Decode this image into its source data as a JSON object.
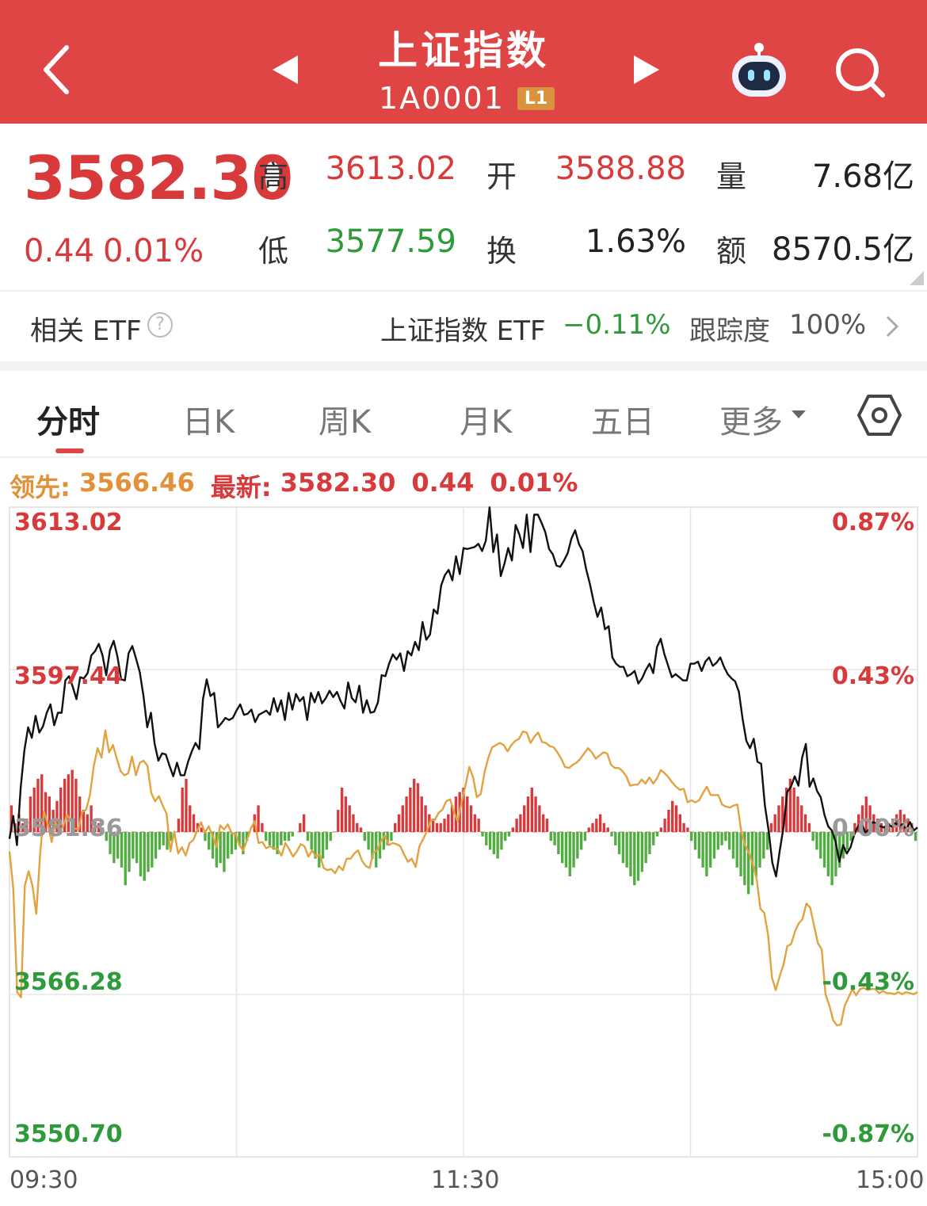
{
  "header": {
    "title": "上证指数",
    "code": "1A0001",
    "level_badge": "L1",
    "colors": {
      "background": "#e04545"
    },
    "icons": [
      "back-arrow-icon",
      "prev-triangle-icon",
      "next-triangle-icon",
      "robot-assistant-icon",
      "search-icon"
    ]
  },
  "quote": {
    "price": "3582.30",
    "change": "0.44",
    "change_pct": "0.01%",
    "stats": [
      {
        "label": "高",
        "value": "3613.02",
        "color": "red"
      },
      {
        "label": "开",
        "value": "3588.88",
        "color": "red"
      },
      {
        "label": "量",
        "value": "7.68亿",
        "color": "dark"
      },
      {
        "label": "低",
        "value": "3577.59",
        "color": "green"
      },
      {
        "label": "换",
        "value": "1.63%",
        "color": "dark"
      },
      {
        "label": "额",
        "value": "8570.5亿",
        "color": "dark"
      }
    ]
  },
  "etf": {
    "label": "相关 ETF",
    "help": "?",
    "name": "上证指数 ETF",
    "change": "−0.11%",
    "tracking_label": "跟踪度",
    "tracking_value": "100%"
  },
  "tabs": [
    {
      "label": "分时",
      "active": true
    },
    {
      "label": "日K",
      "active": false
    },
    {
      "label": "周K",
      "active": false
    },
    {
      "label": "月K",
      "active": false
    },
    {
      "label": "五日",
      "active": false
    },
    {
      "label": "更多",
      "active": false
    }
  ],
  "legend": {
    "lead_label": "领先: ",
    "lead_value": "3566.46",
    "latest_label": "最新: ",
    "latest_value": "3582.30",
    "latest_change": "0.44",
    "latest_pct": "0.01%"
  },
  "chart_data": {
    "type": "line",
    "y_left_ticks": [
      "3613.02",
      "3597.44",
      "3581.86",
      "3566.28",
      "3550.70"
    ],
    "y_right_ticks": [
      "0.87%",
      "0.43%",
      "0.00%",
      "-0.43%",
      "-0.87%"
    ],
    "x_ticks": [
      "09:30",
      "11:30",
      "15:00"
    ],
    "ylim": [
      3550.7,
      3613.02
    ],
    "prev_close": 3581.86,
    "colors": {
      "price": "#111111",
      "lead": "#e2a240",
      "up_bar": "#d8393a",
      "down_bar": "#4fae3f",
      "grid": "#e6e6e6"
    },
    "series": [
      {
        "values": [
          3581.2,
          3583.4,
          3580.6,
          3586.1,
          3589.7,
          3591.9,
          3590.9,
          3593.0,
          3591.4,
          3592.0,
          3593.3,
          3594.1,
          3592.1,
          3593.3,
          3593.3,
          3596.4,
          3596.8,
          3595.8,
          3594.6,
          3596.7,
          3596.6,
          3597.1,
          3598.8,
          3599.2,
          3599.9,
          3598.8,
          3596.9,
          3599.3,
          3600.2,
          3598.7,
          3596.5,
          3596.4,
          3599.0,
          3599.7,
          3598.5,
          3597.2,
          3594.9,
          3591.9,
          3593.3,
          3590.3,
          3588.7,
          3589.4,
          3589.3,
          3588.2,
          3587.2,
          3588.5,
          3587.3,
          3587.3,
          3588.6,
          3589.6,
          3590.4,
          3589.8,
          3594.6,
          3596.5,
          3594.9,
          3595.2,
          3591.9,
          3592.3,
          3592.8,
          3592.6,
          3592.8,
          3593.5,
          3594.1,
          3593.1,
          3593.2,
          3593.6,
          3592.4,
          3593.1,
          3593.3,
          3593.5,
          3593.1,
          3594.7,
          3593.4,
          3594.5,
          3592.6,
          3595.2,
          3593.6,
          3595.1,
          3594.4,
          3594.8,
          3592.6,
          3595.2,
          3594.3,
          3595.3,
          3594.2,
          3594.7,
          3595.4,
          3594.8,
          3595.3,
          3594.4,
          3593.7,
          3596.2,
          3594.7,
          3594.3,
          3595.9,
          3593.3,
          3594.5,
          3593.3,
          3593.4,
          3594.3,
          3596.9,
          3596.8,
          3598.0,
          3598.9,
          3598.4,
          3599.0,
          3597.3,
          3599.2,
          3598.8,
          3600.1,
          3599.3,
          3602.0,
          3600.3,
          3600.8,
          3603.2,
          3602.8,
          3605.5,
          3606.5,
          3607.0,
          3606.0,
          3608.3,
          3606.6,
          3609.1,
          3609.0,
          3609.1,
          3609.2,
          3609.5,
          3608.8,
          3609.8,
          3613.0,
          3608.7,
          3610.4,
          3606.4,
          3607.6,
          3609.1,
          3607.9,
          3611.3,
          3610.4,
          3609.1,
          3612.3,
          3608.7,
          3612.3,
          3612.3,
          3611.5,
          3610.6,
          3609.0,
          3608.5,
          3607.4,
          3607.3,
          3607.9,
          3608.6,
          3610.0,
          3610.8,
          3609.5,
          3608.8,
          3607.0,
          3605.6,
          3603.9,
          3602.5,
          3603.4,
          3601.3,
          3601.6,
          3598.6,
          3598.0,
          3597.7,
          3597.7,
          3596.8,
          3597.0,
          3597.3,
          3596.1,
          3596.6,
          3597.4,
          3598.0,
          3597.1,
          3599.6,
          3600.4,
          3598.9,
          3597.8,
          3596.7,
          3597.0,
          3596.7,
          3596.4,
          3596.4,
          3598.0,
          3598.0,
          3598.2,
          3597.3,
          3598.2,
          3598.6,
          3597.8,
          3598.1,
          3598.6,
          3597.7,
          3597.0,
          3596.6,
          3596.3,
          3595.3,
          3592.7,
          3590.6,
          3589.9,
          3590.8,
          3588.6,
          3588.4,
          3584.4,
          3582.0,
          3578.9,
          3577.6,
          3580.1,
          3582.3,
          3585.7,
          3586.2,
          3587.2,
          3586.3,
          3589.0,
          3590.3,
          3586.2,
          3587.0,
          3585.8,
          3585.2,
          3583.5,
          3582.4,
          3582.0,
          3580.9,
          3579.0,
          3580.6,
          3579.8,
          3580.4,
          3581.6,
          3582.4,
          3582.7,
          3581.8,
          3582.1,
          3582.8,
          3582.7,
          3582.4,
          3582.3,
          3582.6,
          3582.4,
          3582.7,
          3582.5,
          3582.6,
          3582.1,
          3582.8,
          3582.0,
          3582.3
        ]
      },
      {
        "values": [
          3580.0,
          3576.4,
          3566.5,
          3566.0,
          3576.7,
          3578.1,
          3576.7,
          3574.0,
          3579.8,
          3583.8,
          3582.6,
          3580.9,
          3582.8,
          3581.9,
          3582.4,
          3583.5,
          3583.0,
          3582.2,
          3582.1,
          3583.8,
          3584.0,
          3585.4,
          3588.2,
          3589.9,
          3589.0,
          3591.6,
          3589.5,
          3590.2,
          3588.9,
          3587.7,
          3587.3,
          3587.5,
          3589.1,
          3587.3,
          3588.5,
          3588.7,
          3588.2,
          3585.6,
          3584.8,
          3585.3,
          3584.4,
          3583.6,
          3580.0,
          3581.9,
          3579.8,
          3580.4,
          3579.6,
          3580.8,
          3581.1,
          3582.0,
          3582.8,
          3581.8,
          3582.4,
          3581.5,
          3580.4,
          3582.5,
          3582.1,
          3582.6,
          3581.7,
          3581.7,
          3580.6,
          3580.1,
          3581.1,
          3582.2,
          3582.9,
          3580.8,
          3580.9,
          3580.3,
          3580.5,
          3580.3,
          3580.2,
          3579.6,
          3580.8,
          3580.2,
          3579.5,
          3580.0,
          3580.7,
          3580.5,
          3579.5,
          3580.1,
          3579.5,
          3579.7,
          3578.4,
          3578.2,
          3578.3,
          3577.9,
          3578.6,
          3578.2,
          3579.3,
          3579.3,
          3579.8,
          3580.1,
          3579.1,
          3578.6,
          3578.4,
          3579.9,
          3580.1,
          3581.0,
          3581.5,
          3580.6,
          3580.8,
          3580.7,
          3580.5,
          3579.7,
          3579.0,
          3579.3,
          3578.5,
          3580.5,
          3581.2,
          3582.0,
          3583.0,
          3583.0,
          3583.7,
          3584.0,
          3584.8,
          3585.0,
          3583.8,
          3582.9,
          3584.7,
          3586.3,
          3588.1,
          3587.1,
          3585.2,
          3585.5,
          3587.6,
          3589.0,
          3590.0,
          3590.2,
          3590.4,
          3590.2,
          3589.6,
          3590.2,
          3590.6,
          3590.8,
          3591.5,
          3591.4,
          3590.4,
          3591.0,
          3591.4,
          3590.5,
          3590.4,
          3590.1,
          3590.0,
          3589.5,
          3588.9,
          3588.1,
          3588.0,
          3588.3,
          3588.5,
          3588.9,
          3589.4,
          3589.9,
          3589.5,
          3588.9,
          3589.2,
          3589.5,
          3589.4,
          3588.3,
          3588.0,
          3588.0,
          3587.7,
          3587.2,
          3586.3,
          3586.4,
          3586.4,
          3586.9,
          3586.5,
          3587.1,
          3586.5,
          3587.0,
          3587.8,
          3587.5,
          3587.1,
          3586.6,
          3586.2,
          3585.9,
          3586.0,
          3584.7,
          3584.9,
          3584.7,
          3584.9,
          3585.6,
          3586.2,
          3585.4,
          3585.4,
          3585.4,
          3584.5,
          3584.3,
          3584.2,
          3584.4,
          3584.5,
          3581.9,
          3580.6,
          3579.9,
          3578.8,
          3577.4,
          3574.5,
          3574.1,
          3572.0,
          3567.9,
          3566.7,
          3568.0,
          3569.1,
          3570.9,
          3571.1,
          3572.3,
          3573.1,
          3573.5,
          3575.0,
          3574.6,
          3572.9,
          3571.2,
          3570.6,
          3566.3,
          3565.2,
          3563.8,
          3563.3,
          3563.4,
          3565.2,
          3566.0,
          3566.8,
          3566.2,
          3566.8,
          3566.9,
          3566.7,
          3566.8,
          3566.8,
          3566.4,
          3566.6,
          3566.4,
          3566.4,
          3566.3,
          3566.5,
          3566.3,
          3566.5,
          3566.4,
          3566.3,
          3566.5
        ]
      }
    ],
    "volume_bars": [
      6,
      2,
      4,
      2,
      3,
      8,
      10,
      12,
      13,
      9,
      8,
      5,
      7,
      10,
      12,
      13,
      14,
      12,
      8,
      5,
      4,
      6,
      3,
      2,
      1,
      -2,
      -5,
      -7,
      -6,
      -8,
      -12,
      -9,
      -6,
      -7,
      -10,
      -11,
      -9,
      -8,
      -6,
      -4,
      -3,
      -4,
      -2,
      0,
      3,
      10,
      12,
      6,
      4,
      2,
      1,
      -2,
      -4,
      -6,
      -8,
      -7,
      -9,
      -6,
      -5,
      -4,
      -3,
      -5,
      -2,
      0,
      4,
      6,
      2,
      -2,
      -3,
      -4,
      -5,
      -3,
      -2,
      -2,
      -1,
      0,
      2,
      4,
      -2,
      -4,
      -6,
      -8,
      -6,
      -4,
      -2,
      0,
      5,
      10,
      8,
      6,
      4,
      2,
      1,
      -2,
      -4,
      -6,
      -8,
      -6,
      -4,
      -3,
      -2,
      2,
      4,
      6,
      8,
      10,
      12,
      11,
      8,
      6,
      4,
      3,
      2,
      2,
      3,
      4,
      6,
      8,
      9,
      10,
      8,
      6,
      4,
      3,
      -1,
      -3,
      -4,
      -5,
      -6,
      -4,
      -2,
      -1,
      1,
      3,
      4,
      6,
      8,
      10,
      8,
      6,
      4,
      3,
      -2,
      -3,
      -5,
      -7,
      -8,
      -10,
      -8,
      -6,
      -4,
      -2,
      1,
      2,
      3,
      4,
      2,
      1,
      -1,
      -3,
      -5,
      -7,
      -8,
      -10,
      -12,
      -11,
      -9,
      -7,
      -5,
      -3,
      -1,
      1,
      3,
      5,
      7,
      6,
      4,
      2,
      1,
      -2,
      -4,
      -6,
      -8,
      -10,
      -8,
      -6,
      -4,
      -3,
      -2,
      -4,
      -6,
      -8,
      -10,
      -12,
      -14,
      -12,
      -10,
      -8,
      -6,
      -4,
      2,
      4,
      6,
      8,
      10,
      12,
      10,
      8,
      6,
      4,
      2,
      -2,
      -4,
      -6,
      -8,
      -10,
      -12,
      -10,
      -8,
      -6,
      -4,
      -2,
      2,
      4,
      6,
      8,
      6,
      4,
      3,
      2,
      1,
      2,
      3,
      4,
      5,
      4,
      3,
      2,
      -2
    ]
  }
}
